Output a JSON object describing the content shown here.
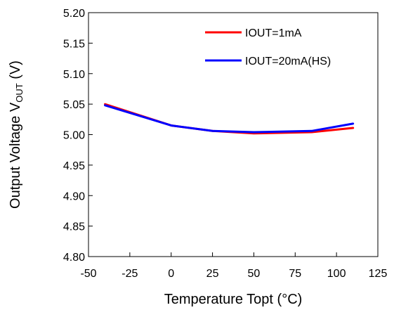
{
  "chart_data": {
    "type": "line",
    "xlabel": "Temperature Topt (°C)",
    "ylabel_main": "Output Voltage V",
    "ylabel_sub": "OUT",
    "ylabel_unit": " (V)",
    "xlim": [
      -50,
      125
    ],
    "ylim": [
      4.8,
      5.2
    ],
    "xticks": [
      -50,
      -25,
      0,
      25,
      50,
      75,
      100,
      125
    ],
    "xtick_labels": [
      "-50",
      "-25",
      "0",
      "25",
      "50",
      "75",
      "100",
      "125"
    ],
    "yticks": [
      4.8,
      4.85,
      4.9,
      4.95,
      5.0,
      5.05,
      5.1,
      5.15,
      5.2
    ],
    "ytick_labels": [
      "4.80",
      "4.85",
      "4.90",
      "4.95",
      "5.00",
      "5.05",
      "5.10",
      "5.15",
      "5.20"
    ],
    "grid": false,
    "legend_position": "top-right",
    "x": [
      -40,
      0,
      25,
      50,
      85,
      110
    ],
    "series": [
      {
        "name": "IOUT=1mA",
        "color": "#ff0000",
        "values": [
          5.05,
          5.015,
          5.006,
          5.002,
          5.004,
          5.011
        ]
      },
      {
        "name": "IOUT=20mA(HS)",
        "color": "#0000ff",
        "values": [
          5.048,
          5.015,
          5.006,
          5.004,
          5.006,
          5.018
        ]
      }
    ]
  }
}
